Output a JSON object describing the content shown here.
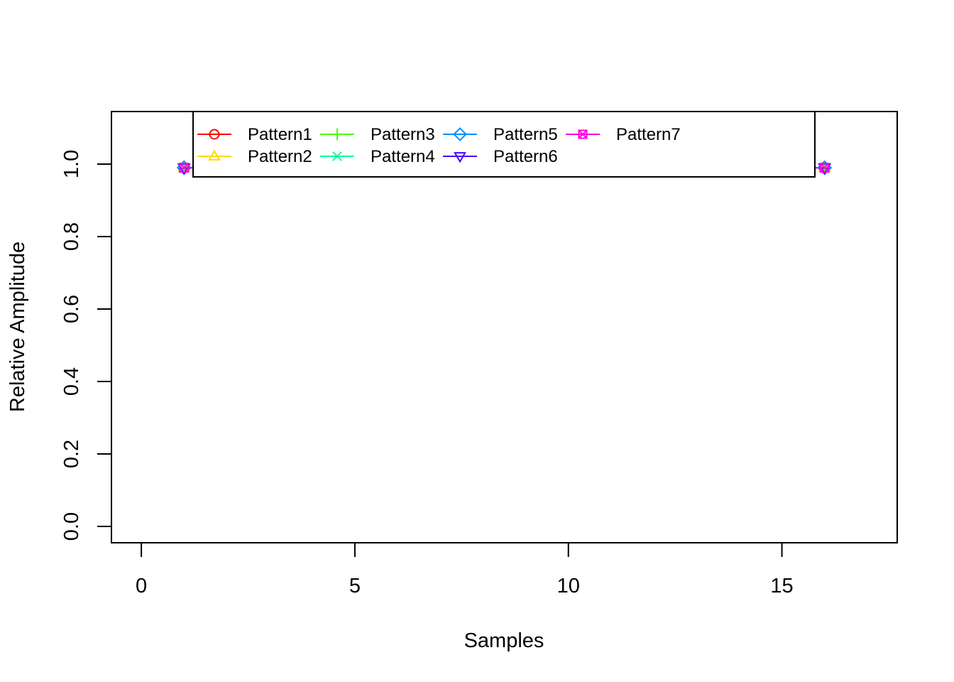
{
  "chart_data": {
    "type": "line",
    "title": "",
    "xlabel": "Samples",
    "ylabel": "Relative Amplitude",
    "xlim": [
      -0.7,
      17.7
    ],
    "ylim": [
      -0.045,
      1.145
    ],
    "xticks": [
      0,
      5,
      10,
      15
    ],
    "xtick_labels": [
      "0",
      "5",
      "10",
      "15"
    ],
    "yticks": [
      0.0,
      0.2,
      0.4,
      0.6,
      0.8,
      1.0
    ],
    "ytick_labels": [
      "0.0",
      "0.2",
      "0.4",
      "0.6",
      "0.8",
      "1.0"
    ],
    "grid": false,
    "legend_position": "top",
    "series": [
      {
        "name": "Pattern1",
        "color": "#FF0000",
        "marker": "circle",
        "x": [
          1,
          16
        ],
        "y": [
          0.99,
          0.99
        ]
      },
      {
        "name": "Pattern2",
        "color": "#FFDB00",
        "marker": "triangle-up",
        "x": [
          1,
          16
        ],
        "y": [
          0.99,
          0.99
        ]
      },
      {
        "name": "Pattern3",
        "color": "#49FF00",
        "marker": "plus",
        "x": [
          1,
          16
        ],
        "y": [
          0.99,
          0.99
        ]
      },
      {
        "name": "Pattern4",
        "color": "#00FF92",
        "marker": "cross",
        "x": [
          1,
          16
        ],
        "y": [
          0.99,
          0.99
        ]
      },
      {
        "name": "Pattern5",
        "color": "#0092FF",
        "marker": "diamond",
        "x": [
          1,
          16
        ],
        "y": [
          0.99,
          0.99
        ]
      },
      {
        "name": "Pattern6",
        "color": "#4900FF",
        "marker": "triangle-down",
        "x": [
          1,
          16
        ],
        "y": [
          0.99,
          0.99
        ]
      },
      {
        "name": "Pattern7",
        "color": "#FF00DB",
        "marker": "square-cross",
        "x": [
          1,
          16
        ],
        "y": [
          0.99,
          0.99
        ]
      }
    ]
  }
}
